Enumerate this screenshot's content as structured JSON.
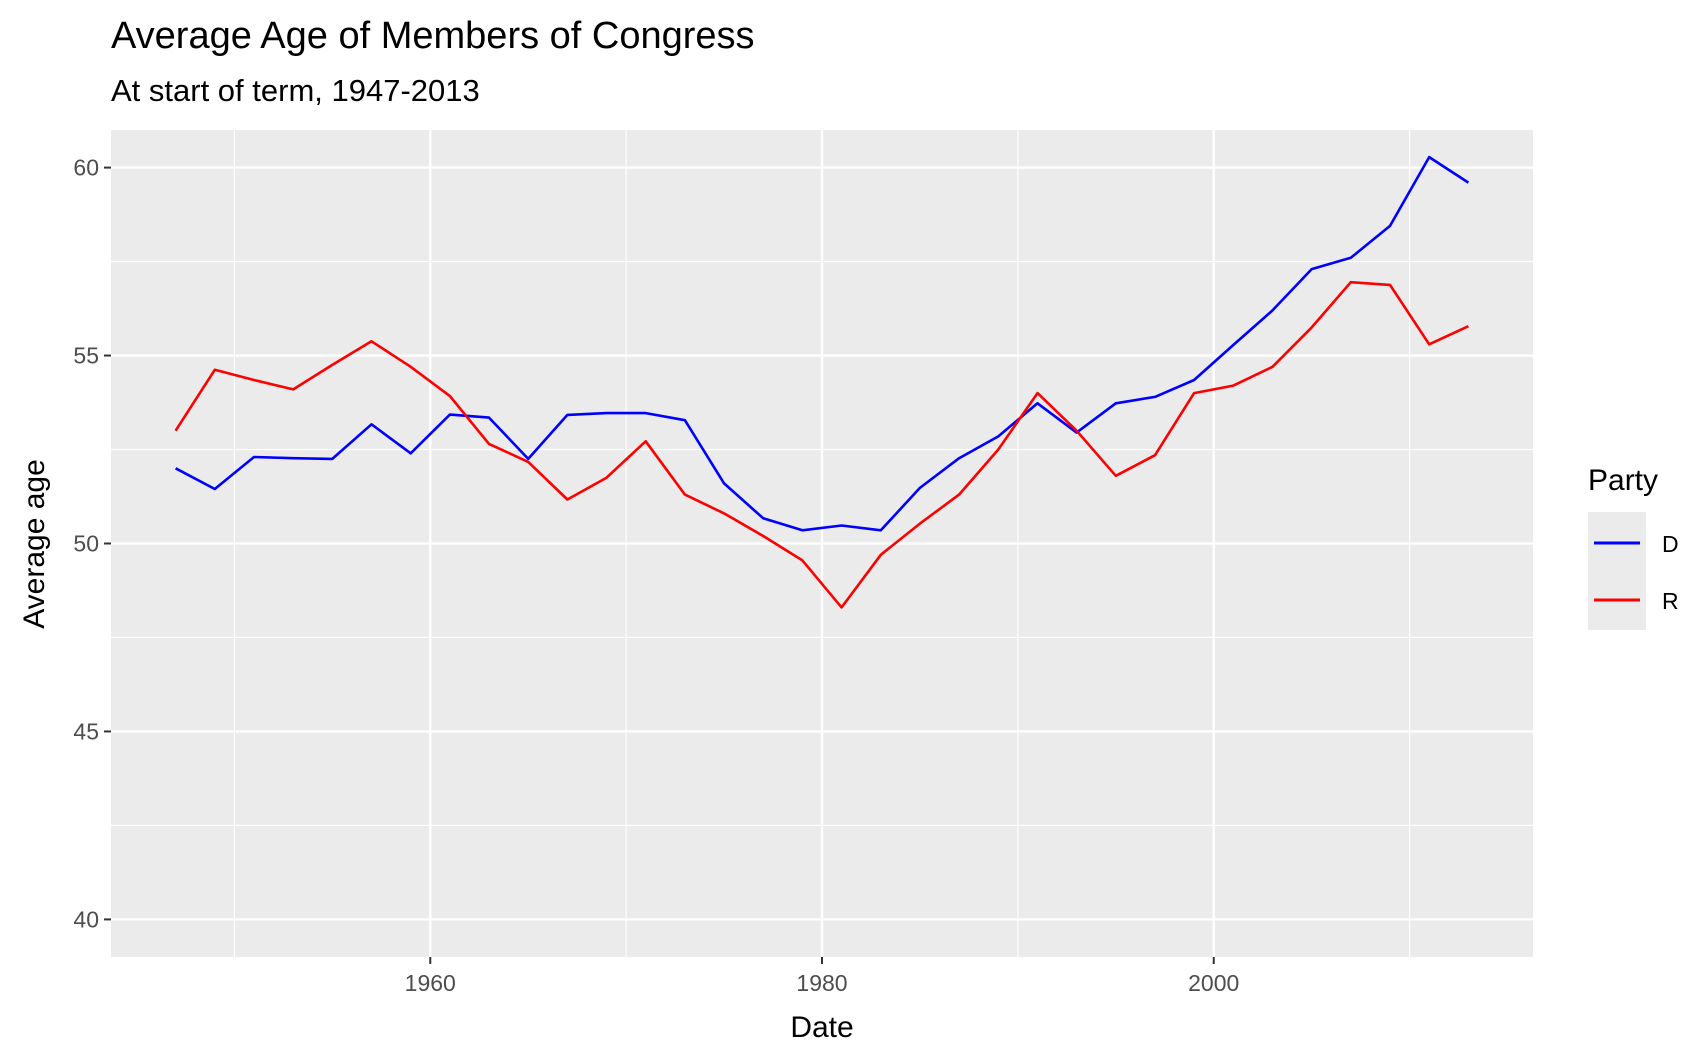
{
  "chart_data": {
    "type": "line",
    "title": "Average Age of Members of Congress",
    "subtitle": "At start of term, 1947-2013",
    "xlabel": "Date",
    "ylabel": "Average age",
    "xlim": [
      1943.7,
      2016.3
    ],
    "ylim": [
      39.0,
      61.0
    ],
    "x_ticks": [
      1960,
      1980,
      2000
    ],
    "y_ticks": [
      40,
      45,
      50,
      55,
      60
    ],
    "grid": true,
    "legend": {
      "title": "Party",
      "position": "right"
    },
    "x": [
      1947,
      1949,
      1951,
      1953,
      1955,
      1957,
      1959,
      1961,
      1963,
      1965,
      1967,
      1969,
      1971,
      1973,
      1975,
      1977,
      1979,
      1981,
      1983,
      1985,
      1987,
      1989,
      1991,
      1993,
      1995,
      1997,
      1999,
      2001,
      2003,
      2005,
      2007,
      2009,
      2011,
      2013
    ],
    "series": [
      {
        "name": "D",
        "color": "#0000ff",
        "values": [
          52.0,
          51.45,
          52.3,
          52.27,
          52.25,
          53.17,
          52.4,
          53.43,
          53.35,
          52.25,
          53.42,
          53.47,
          53.47,
          53.28,
          51.6,
          50.67,
          50.35,
          50.48,
          50.35,
          51.48,
          52.27,
          52.85,
          53.73,
          52.95,
          53.73,
          53.9,
          54.35,
          55.28,
          56.2,
          57.3,
          57.6,
          58.45,
          60.28,
          59.6
        ]
      },
      {
        "name": "R",
        "color": "#ff0000",
        "values": [
          53.0,
          54.62,
          54.35,
          54.1,
          54.75,
          55.38,
          54.7,
          53.92,
          52.65,
          52.17,
          51.17,
          51.75,
          52.72,
          51.3,
          50.8,
          50.2,
          49.55,
          48.3,
          49.7,
          50.53,
          51.3,
          52.5,
          54.0,
          53.0,
          51.8,
          52.35,
          54.0,
          54.2,
          54.7,
          55.75,
          56.95,
          56.88,
          55.3,
          55.78
        ]
      }
    ]
  }
}
